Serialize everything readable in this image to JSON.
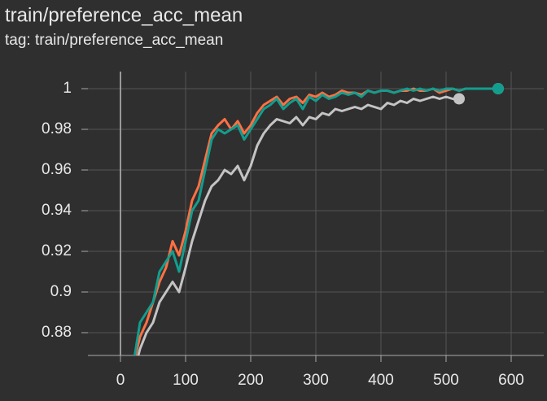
{
  "chart_data": {
    "type": "line",
    "title": "train/preference_acc_mean",
    "subtitle": "tag: train/preference_acc_mean",
    "x": [
      20,
      30,
      40,
      50,
      60,
      70,
      80,
      90,
      100,
      110,
      120,
      130,
      140,
      150,
      160,
      170,
      180,
      190,
      200,
      210,
      220,
      230,
      240,
      250,
      260,
      270,
      280,
      290,
      300,
      310,
      320,
      330,
      340,
      350,
      360,
      370,
      380,
      390,
      400,
      410,
      420,
      430,
      440,
      450,
      460,
      470,
      480,
      490,
      500,
      510,
      520,
      530,
      540,
      550,
      560,
      570,
      580
    ],
    "series": [
      {
        "name": "orange",
        "color": "#ff7043",
        "values": [
          0.865,
          0.878,
          0.885,
          0.895,
          0.905,
          0.912,
          0.925,
          0.918,
          0.93,
          0.945,
          0.952,
          0.965,
          0.978,
          0.982,
          0.985,
          0.98,
          0.984,
          0.978,
          0.982,
          0.988,
          0.992,
          0.994,
          0.996,
          0.992,
          0.995,
          0.996,
          0.993,
          0.997,
          0.996,
          0.998,
          0.996,
          0.997,
          0.999,
          0.998,
          0.998,
          0.997,
          0.999,
          0.998,
          0.999,
          0.999,
          0.998,
          0.999,
          0.999,
          1,
          0.999,
          0.999,
          1,
          0.998,
          0.999,
          1,
          0.999,
          1,
          1,
          1,
          1,
          1,
          1
        ]
      },
      {
        "name": "gray",
        "color": "#c4c4c4",
        "values": [
          0.86,
          0.872,
          0.88,
          0.885,
          0.895,
          0.9,
          0.905,
          0.9,
          0.912,
          0.925,
          0.935,
          0.945,
          0.952,
          0.955,
          0.96,
          0.958,
          0.962,
          0.955,
          0.962,
          0.972,
          0.978,
          0.982,
          0.985,
          0.984,
          0.983,
          0.986,
          0.982,
          0.986,
          0.985,
          0.988,
          0.987,
          0.99,
          0.989,
          0.99,
          0.991,
          0.99,
          0.992,
          0.991,
          0.99,
          0.993,
          0.992,
          0.994,
          0.993,
          0.995,
          0.994,
          0.995,
          0.996,
          0.995,
          0.996,
          0.995,
          0.995,
          null,
          null,
          null,
          null,
          null,
          null
        ]
      },
      {
        "name": "teal",
        "color": "#129e8f",
        "values": [
          0.865,
          0.885,
          0.89,
          0.895,
          0.91,
          0.915,
          0.92,
          0.91,
          0.925,
          0.94,
          0.945,
          0.96,
          0.975,
          0.98,
          0.978,
          0.98,
          0.982,
          0.975,
          0.98,
          0.985,
          0.99,
          0.992,
          0.995,
          0.99,
          0.993,
          0.995,
          0.99,
          0.996,
          0.994,
          0.997,
          0.995,
          0.996,
          0.998,
          0.997,
          0.998,
          0.996,
          0.999,
          0.998,
          0.999,
          0.999,
          0.998,
          0.999,
          1,
          0.999,
          1,
          0.999,
          1,
          0.999,
          1,
          1,
          0.999,
          1,
          1,
          1,
          1,
          1,
          1
        ]
      }
    ],
    "xlim": [
      -50,
      650
    ],
    "ylim": [
      0.8688,
      1.0084
    ],
    "xticks": [
      0,
      100,
      200,
      300,
      400,
      500,
      600
    ],
    "yticks": [
      0.88,
      0.9,
      0.92,
      0.94,
      0.96,
      0.98,
      1
    ],
    "grid": true
  }
}
